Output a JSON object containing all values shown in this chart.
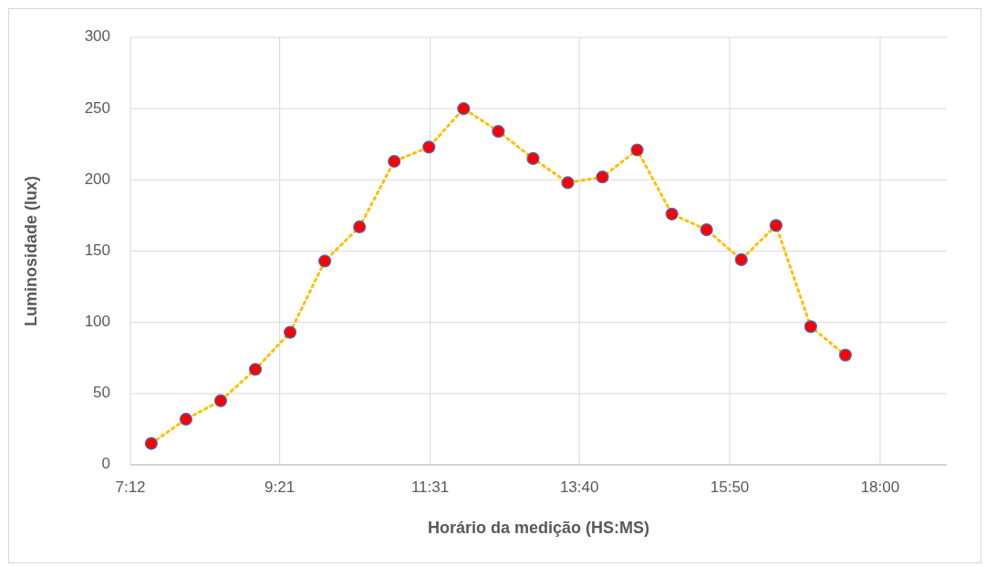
{
  "chart_data": {
    "type": "line",
    "xlabel": "Horário da medição (HS:MS)",
    "ylabel": "Luminosidade (lux)",
    "x": [
      7.5,
      8,
      8.5,
      9,
      9.5,
      10,
      10.5,
      11,
      11.5,
      12,
      12.5,
      13,
      13.5,
      14,
      14.5,
      15,
      15.5,
      16,
      16.5,
      17,
      17.5
    ],
    "series": [
      {
        "color": "#ffc000",
        "values": [
          15,
          32,
          45,
          67,
          93,
          143,
          167,
          213,
          223,
          250,
          234,
          215,
          198,
          202,
          221,
          176,
          165,
          144,
          168,
          97,
          77
        ]
      }
    ],
    "xlim": [
      7.2,
      18.96
    ],
    "xticks": [
      {
        "value": 7.2,
        "label": "7:12"
      },
      {
        "value": 9.35,
        "label": "9:21"
      },
      {
        "value": 11.5167,
        "label": "11:31"
      },
      {
        "value": 13.6667,
        "label": "13:40"
      },
      {
        "value": 15.8333,
        "label": "15:50"
      },
      {
        "value": 18,
        "label": "18:00"
      }
    ],
    "ylim": [
      0,
      300
    ],
    "yticks": [
      0,
      50,
      100,
      150,
      200,
      250,
      300
    ],
    "grid": true,
    "marker": "circle",
    "line_style": "dotted"
  }
}
